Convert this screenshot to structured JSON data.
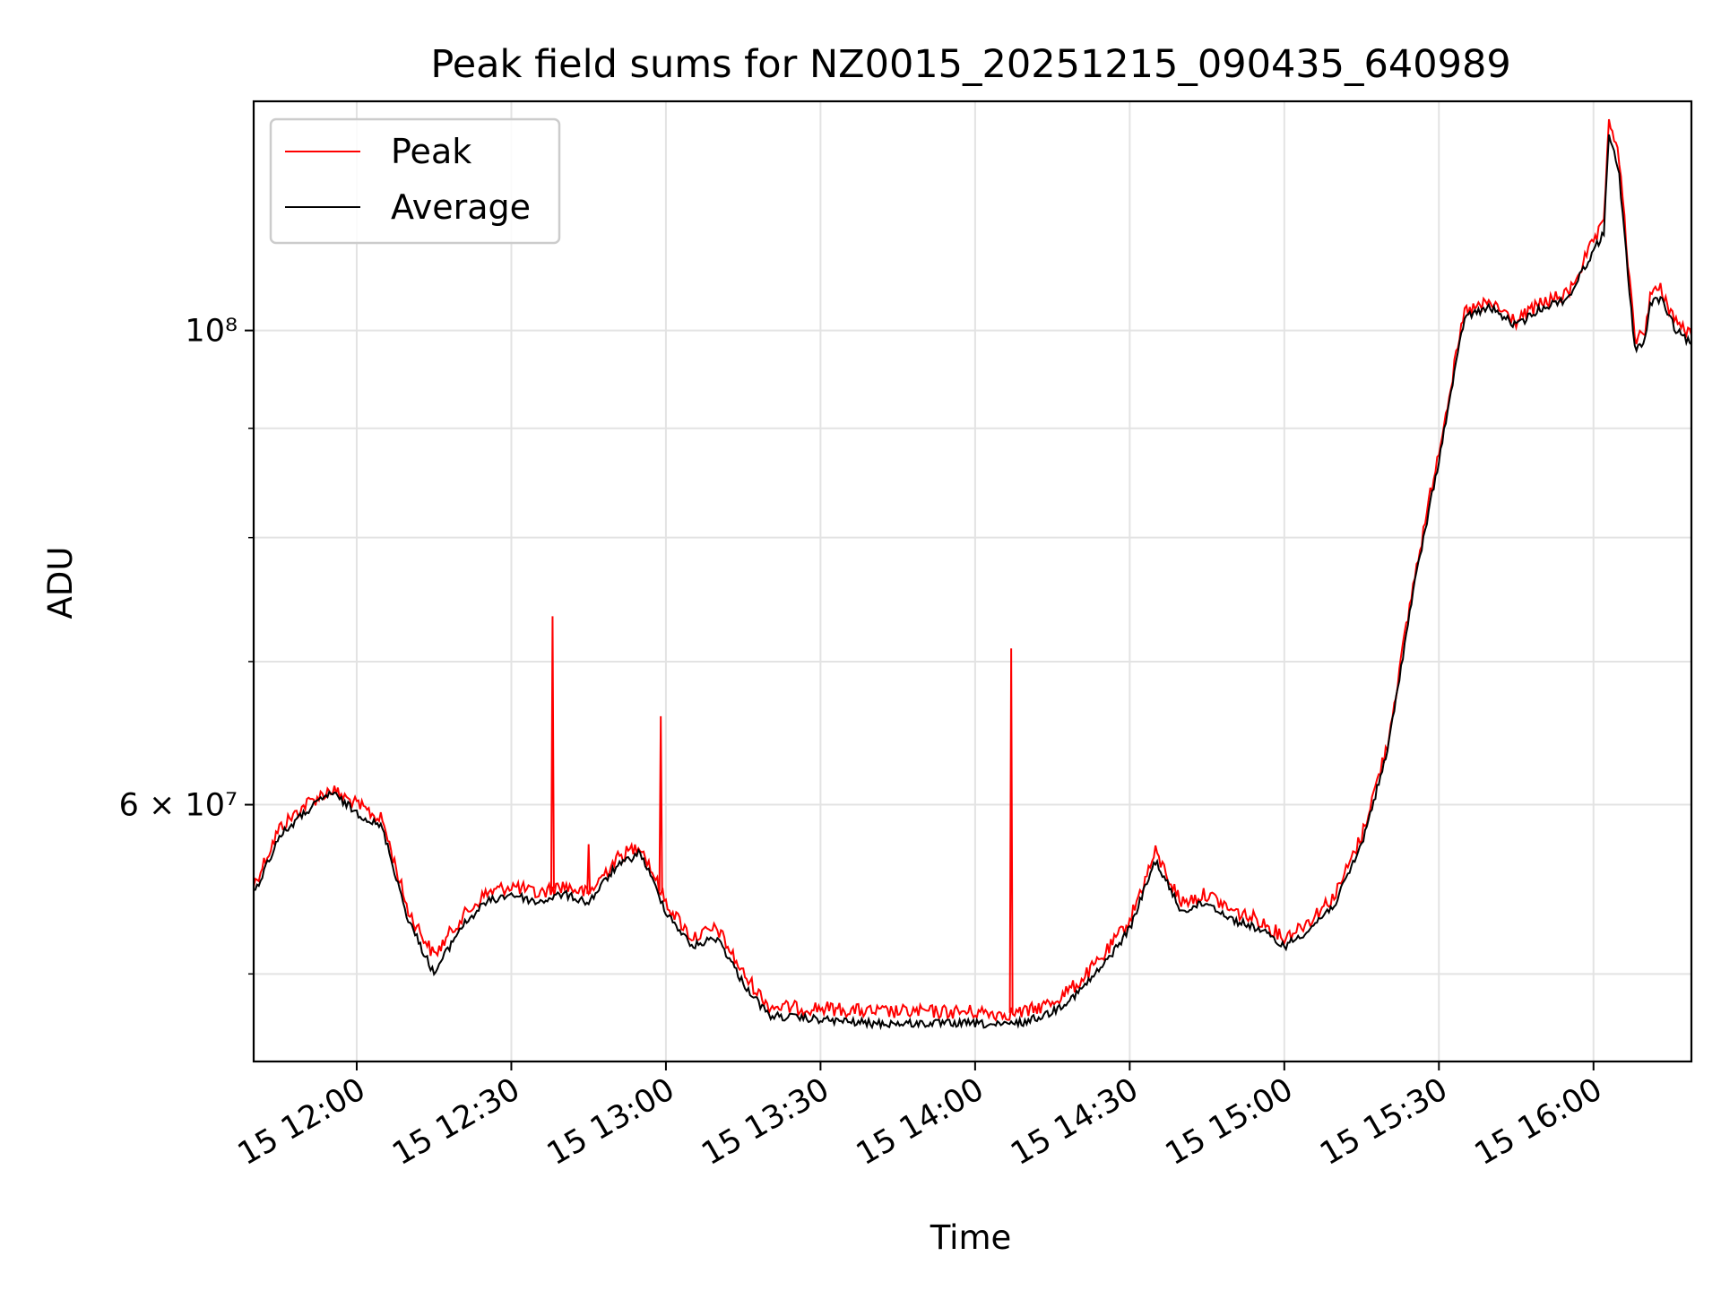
{
  "chart_data": {
    "type": "line",
    "title": "Peak field sums for NZ0015_20251215_090435_640989",
    "xlabel": "Time",
    "ylabel": "ADU",
    "yscale": "log",
    "grid": true,
    "legend_position": "upper-left",
    "xlim": [
      "2025-12-15 11:40",
      "2025-12-15 16:19"
    ],
    "ylim": [
      45500000,
      128000000
    ],
    "x_ticks": [
      "15 12:00",
      "15 12:30",
      "15 13:00",
      "15 13:30",
      "15 14:00",
      "15 14:30",
      "15 15:00",
      "15 15:30",
      "15 16:00"
    ],
    "y_major_tick_labels": [
      "6 × 10⁷",
      "10⁸"
    ],
    "y_major_tick_values": [
      60000000,
      100000000
    ],
    "y_minor_tick_values": [
      50000000,
      70000000,
      80000000,
      90000000
    ],
    "time_values": [
      "11:40",
      "11:45",
      "11:50",
      "11:55",
      "12:00",
      "12:05",
      "12:10",
      "12:15",
      "12:20",
      "12:25",
      "12:30",
      "12:35",
      "12:40",
      "12:45",
      "12:50",
      "12:55",
      "13:00",
      "13:05",
      "13:10",
      "13:15",
      "13:20",
      "13:25",
      "13:30",
      "13:35",
      "13:40",
      "13:45",
      "13:50",
      "13:55",
      "14:00",
      "14:05",
      "14:10",
      "14:15",
      "14:20",
      "14:25",
      "14:30",
      "14:35",
      "14:40",
      "14:45",
      "14:50",
      "14:55",
      "15:00",
      "15:05",
      "15:10",
      "15:15",
      "15:20",
      "15:25",
      "15:30",
      "15:35",
      "15:40",
      "15:45",
      "15:50",
      "15:55",
      "16:00",
      "16:02",
      "16:03",
      "16:05",
      "16:08",
      "16:10",
      "16:11",
      "16:13",
      "16:16",
      "16:19"
    ],
    "series": [
      {
        "name": "Peak",
        "color": "#ff0000",
        "values": [
          55000000,
          58500000,
          60000000,
          61000000,
          60000000,
          59000000,
          53500000,
          51000000,
          53000000,
          54500000,
          55000000,
          54500000,
          55000000,
          54500000,
          56500000,
          57500000,
          54000000,
          52000000,
          52500000,
          50000000,
          48300000,
          48200000,
          48200000,
          48100000,
          48000000,
          48000000,
          48000000,
          48000000,
          48000000,
          47900000,
          48000000,
          48500000,
          49500000,
          51000000,
          53000000,
          57000000,
          54000000,
          54500000,
          53500000,
          53000000,
          52000000,
          53000000,
          54500000,
          58000000,
          64000000,
          76000000,
          88000000,
          102000000,
          103000000,
          101000000,
          103000000,
          104000000,
          110000000,
          112000000,
          126000000,
          120000000,
          99000000,
          100000000,
          104000000,
          104500000,
          101000000,
          99500000
        ],
        "spikes": [
          {
            "time": "12:38",
            "value": 73500000
          },
          {
            "time": "12:45",
            "value": 57500000
          },
          {
            "time": "12:59",
            "value": 66000000
          },
          {
            "time": "14:07",
            "value": 71000000
          }
        ]
      },
      {
        "name": "Average",
        "color": "#000000",
        "values": [
          54500000,
          58000000,
          59500000,
          60800000,
          59500000,
          58500000,
          53000000,
          50000000,
          52500000,
          54000000,
          54500000,
          54000000,
          54500000,
          54000000,
          56000000,
          57000000,
          53500000,
          51500000,
          52000000,
          49500000,
          47800000,
          47700000,
          47600000,
          47500000,
          47400000,
          47400000,
          47400000,
          47400000,
          47400000,
          47300000,
          47500000,
          48000000,
          49000000,
          50500000,
          52500000,
          56500000,
          53500000,
          54000000,
          53000000,
          52500000,
          51500000,
          52500000,
          54000000,
          57500000,
          63500000,
          75500000,
          87000000,
          101500000,
          102500000,
          100500000,
          102500000,
          103500000,
          109000000,
          111000000,
          124000000,
          118000000,
          98000000,
          99000000,
          103000000,
          103500000,
          100000000,
          98500000
        ]
      }
    ]
  },
  "legend": {
    "items": [
      {
        "label": "Peak",
        "color": "#ff0000"
      },
      {
        "label": "Average",
        "color": "#000000"
      }
    ]
  }
}
